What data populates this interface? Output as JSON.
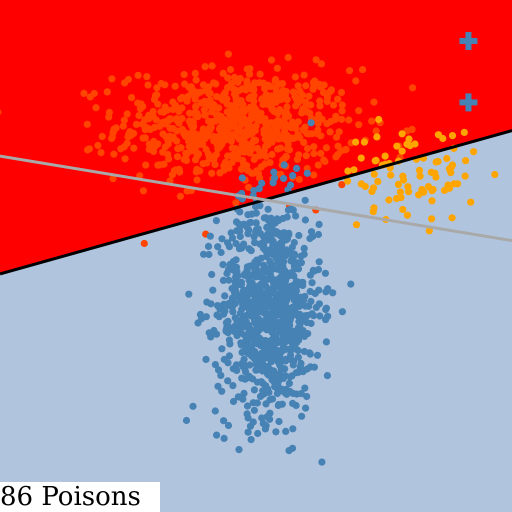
{
  "caption": "86 Poisons",
  "colors": {
    "red_region": "#ff0000",
    "blue_region": "#b0c4de",
    "class_red_points": "#ff4500",
    "class_blue_points": "#4682b4",
    "poison_points": "#ffa500",
    "poison_markers": "#4682b4",
    "boundary": "#000000",
    "clean_boundary": "#a9a9a9"
  },
  "chart_data": {
    "type": "scatter",
    "title": "",
    "xlabel": "",
    "ylabel": "",
    "xlim": [
      0,
      10
    ],
    "ylim": [
      0,
      10
    ],
    "grid": false,
    "axes_visible": false,
    "series": [
      {
        "class": "red",
        "n": 700,
        "center": [
          4.6,
          7.55
        ],
        "spread": [
          1.15,
          0.55
        ],
        "color": "#ff4500"
      },
      {
        "class": "blue",
        "n": 900,
        "center": [
          5.25,
          4.0
        ],
        "spread": [
          0.5,
          1.05
        ],
        "color": "#4682b4"
      },
      {
        "class": "poison",
        "n": 86,
        "center": [
          8.0,
          6.6
        ],
        "spread": [
          0.65,
          0.45
        ],
        "color": "#ffa500"
      }
    ],
    "markers": [
      {
        "type": "plus",
        "x": 9.15,
        "y": 9.2,
        "color": "#4682b4"
      },
      {
        "type": "plus",
        "x": 9.15,
        "y": 8.0,
        "color": "#4682b4"
      }
    ],
    "boundaries": [
      {
        "name": "decision",
        "x": [
          0,
          10
        ],
        "y": [
          4.65,
          7.45
        ],
        "color": "#000000",
        "width": 3
      },
      {
        "name": "clean",
        "x": [
          0,
          10
        ],
        "y": [
          6.95,
          5.3
        ],
        "color": "#a9a9a9",
        "width": 3
      }
    ],
    "regions": {
      "above": "#ff0000",
      "below": "#b0c4de"
    }
  }
}
